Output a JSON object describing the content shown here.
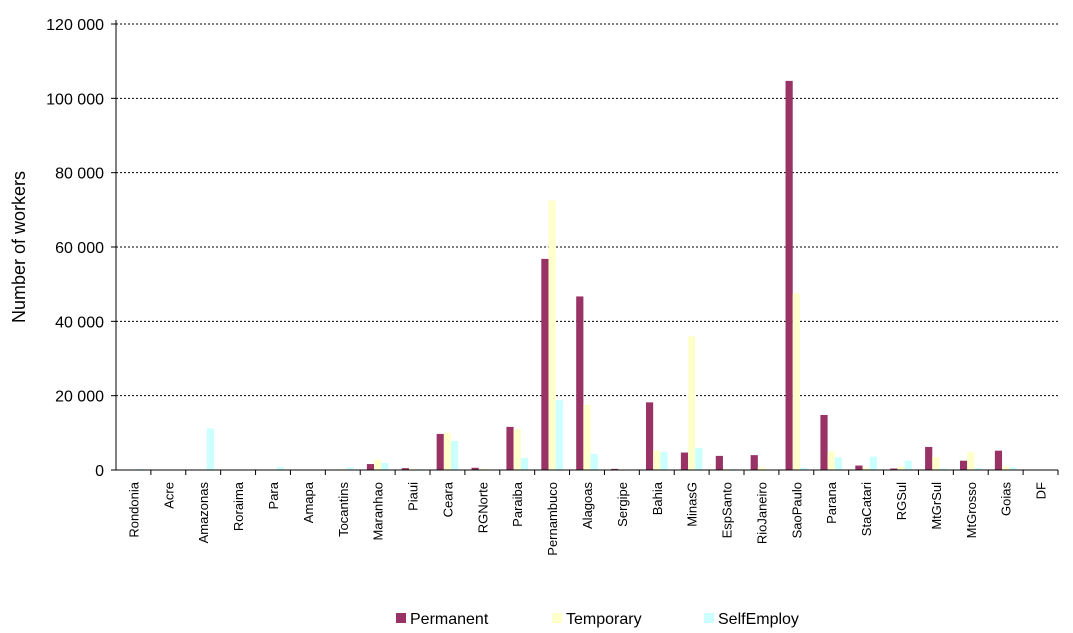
{
  "chart_data": {
    "type": "bar",
    "title": "",
    "xlabel": "",
    "ylabel": "Number of workers",
    "ylim": [
      0,
      120000
    ],
    "yticks": [
      0,
      20000,
      40000,
      60000,
      80000,
      100000,
      120000
    ],
    "ytick_labels": [
      "0",
      "20 000",
      "40 000",
      "60 000",
      "80 000",
      "100 000",
      "120 000"
    ],
    "grid": true,
    "legend_position": "bottom",
    "categories": [
      "Rondonia",
      "Acre",
      "Amazonas",
      "Roraima",
      "Para",
      "Amapa",
      "Tocantins",
      "Maranhao",
      "Piaui",
      "Ceara",
      "RGNorte",
      "Paraiba",
      "Pernambuco",
      "Alagoas",
      "Sergipe",
      "Bahia",
      "MinasG",
      "EspSanto",
      "RioJaneiro",
      "SaoPaulo",
      "Parana",
      "StaCatari",
      "RGSul",
      "MtGrSul",
      "MtGrosso",
      "Goias",
      "DF"
    ],
    "series": [
      {
        "name": "Permanent",
        "color": "#993366",
        "values": [
          0,
          0,
          0,
          0,
          0,
          0,
          0,
          1600,
          500,
          9700,
          600,
          11600,
          56800,
          46700,
          300,
          18200,
          4700,
          3800,
          4000,
          104700,
          14800,
          1200,
          400,
          6200,
          2500,
          5200,
          0
        ]
      },
      {
        "name": "Temporary",
        "color": "#ffffcc",
        "values": [
          0,
          0,
          0,
          0,
          0,
          0,
          300,
          2800,
          300,
          10000,
          300,
          11000,
          72500,
          17500,
          200,
          5200,
          36000,
          300,
          700,
          47500,
          5000,
          600,
          900,
          3500,
          4800,
          1000,
          0
        ]
      },
      {
        "name": "SelfEmploy",
        "color": "#ccffff",
        "values": [
          300,
          0,
          11200,
          0,
          800,
          0,
          700,
          1900,
          200,
          7800,
          0,
          3200,
          18800,
          4300,
          0,
          4800,
          5900,
          300,
          0,
          600,
          3400,
          3600,
          2500,
          400,
          500,
          700,
          0
        ]
      }
    ]
  }
}
